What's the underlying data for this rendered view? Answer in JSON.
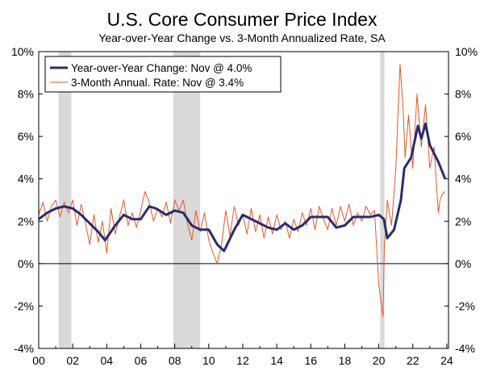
{
  "chart_data": {
    "type": "line",
    "title": "U.S. Core Consumer Price Index",
    "subtitle": "Year-over-Year Change vs. 3-Month Annualized Rate, SA",
    "xlabel": "",
    "ylabel": "",
    "xlim": [
      2000.0,
      2024.1
    ],
    "ylim": [
      -4,
      10
    ],
    "x_ticks": [
      "00",
      "02",
      "04",
      "06",
      "08",
      "10",
      "12",
      "14",
      "16",
      "18",
      "20",
      "22",
      "24"
    ],
    "y_ticks_left": [
      "-4%",
      "-2%",
      "0%",
      "2%",
      "4%",
      "6%",
      "8%",
      "10%"
    ],
    "y_ticks_right": [
      "-4%",
      "-2%",
      "0%",
      "2%",
      "4%",
      "6%",
      "8%",
      "10%"
    ],
    "grid": false,
    "legend_position": "top-left",
    "recession_shading": [
      [
        2001.17,
        2001.92
      ],
      [
        2007.92,
        2009.5
      ],
      [
        2020.08,
        2020.33
      ]
    ],
    "colors": {
      "yoy": "#2b2b6e",
      "annual3m": "#e8562a",
      "recession": "#d9d9d9"
    },
    "series": [
      {
        "name": "Year-over-Year Change: Nov @ 4.0%",
        "x": [
          2000.0,
          2000.5,
          2001.0,
          2001.5,
          2002.0,
          2002.5,
          2003.0,
          2003.5,
          2003.9,
          2004.5,
          2005.0,
          2005.5,
          2006.0,
          2006.5,
          2006.9,
          2007.5,
          2008.0,
          2008.5,
          2009.0,
          2009.5,
          2010.0,
          2010.5,
          2010.9,
          2011.5,
          2012.0,
          2012.5,
          2013.0,
          2013.5,
          2014.0,
          2014.5,
          2015.0,
          2015.5,
          2016.0,
          2016.5,
          2017.0,
          2017.5,
          2018.0,
          2018.5,
          2019.0,
          2019.5,
          2020.0,
          2020.3,
          2020.5,
          2020.9,
          2021.3,
          2021.5,
          2021.9,
          2022.3,
          2022.5,
          2022.75,
          2023.0,
          2023.5,
          2023.9
        ],
        "values": [
          2.1,
          2.4,
          2.6,
          2.7,
          2.6,
          2.3,
          1.9,
          1.5,
          1.1,
          1.8,
          2.3,
          2.1,
          2.1,
          2.7,
          2.6,
          2.3,
          2.5,
          2.4,
          1.8,
          1.6,
          1.6,
          0.9,
          0.6,
          1.6,
          2.3,
          2.1,
          1.9,
          1.7,
          1.6,
          1.9,
          1.6,
          1.8,
          2.2,
          2.2,
          2.2,
          1.7,
          1.8,
          2.2,
          2.2,
          2.2,
          2.3,
          2.1,
          1.2,
          1.6,
          3.0,
          4.5,
          5.0,
          6.5,
          5.9,
          6.6,
          5.6,
          4.8,
          4.0
        ]
      },
      {
        "name": "3-Month Annual. Rate: Nov @ 3.4%",
        "x": [
          2000.0,
          2000.25,
          2000.5,
          2000.75,
          2001.0,
          2001.25,
          2001.5,
          2001.75,
          2002.0,
          2002.25,
          2002.5,
          2002.75,
          2003.0,
          2003.25,
          2003.5,
          2003.75,
          2004.0,
          2004.25,
          2004.5,
          2004.75,
          2005.0,
          2005.25,
          2005.5,
          2005.75,
          2006.0,
          2006.25,
          2006.5,
          2006.75,
          2007.0,
          2007.25,
          2007.5,
          2007.75,
          2008.0,
          2008.25,
          2008.5,
          2008.75,
          2009.0,
          2009.25,
          2009.5,
          2009.75,
          2010.0,
          2010.25,
          2010.5,
          2010.75,
          2011.0,
          2011.25,
          2011.5,
          2011.75,
          2012.0,
          2012.25,
          2012.5,
          2012.75,
          2013.0,
          2013.25,
          2013.5,
          2013.75,
          2014.0,
          2014.25,
          2014.5,
          2014.75,
          2015.0,
          2015.25,
          2015.5,
          2015.75,
          2016.0,
          2016.25,
          2016.5,
          2016.75,
          2017.0,
          2017.25,
          2017.5,
          2017.75,
          2018.0,
          2018.25,
          2018.5,
          2018.75,
          2019.0,
          2019.25,
          2019.5,
          2019.75,
          2020.0,
          2020.25,
          2020.33,
          2020.5,
          2020.75,
          2021.0,
          2021.25,
          2021.42,
          2021.55,
          2021.75,
          2022.0,
          2022.25,
          2022.5,
          2022.75,
          2023.0,
          2023.25,
          2023.5,
          2023.6,
          2023.75,
          2023.9
        ],
        "values": [
          2.3,
          2.9,
          2.0,
          2.7,
          3.0,
          2.2,
          2.9,
          2.4,
          3.0,
          1.8,
          2.8,
          1.9,
          0.9,
          2.3,
          1.0,
          2.0,
          0.5,
          2.6,
          1.4,
          2.2,
          3.0,
          1.8,
          2.4,
          1.7,
          2.5,
          3.4,
          2.9,
          2.0,
          2.6,
          2.2,
          2.9,
          1.9,
          3.0,
          2.5,
          3.0,
          1.9,
          1.1,
          2.5,
          1.5,
          2.4,
          1.1,
          0.5,
          0.0,
          0.9,
          2.5,
          1.3,
          2.7,
          1.8,
          2.3,
          1.4,
          2.6,
          1.5,
          2.3,
          1.2,
          2.2,
          1.4,
          2.3,
          1.6,
          2.0,
          1.2,
          2.1,
          1.5,
          2.4,
          1.8,
          2.6,
          1.6,
          2.7,
          2.1,
          1.6,
          2.6,
          1.8,
          2.7,
          2.0,
          2.8,
          1.8,
          2.4,
          2.0,
          2.7,
          2.3,
          2.5,
          -1.0,
          -2.5,
          0.8,
          3.0,
          1.8,
          4.5,
          9.4,
          7.5,
          5.0,
          7.0,
          4.5,
          8.0,
          5.5,
          7.5,
          4.5,
          5.5,
          2.4,
          3.0,
          3.3,
          3.4
        ]
      }
    ]
  }
}
